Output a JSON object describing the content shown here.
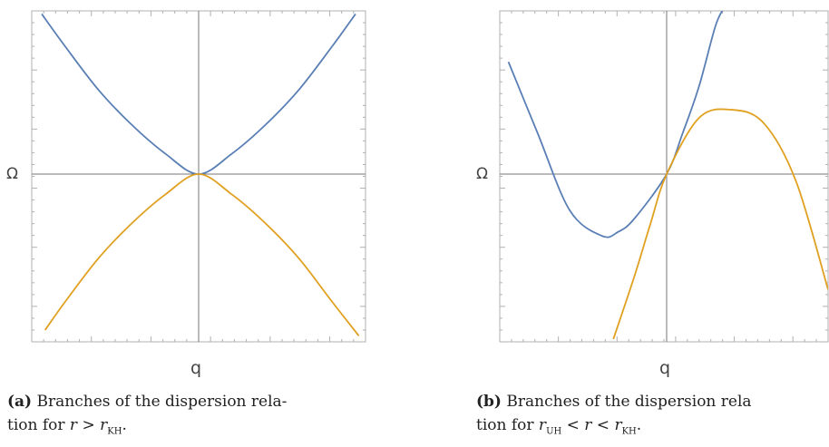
{
  "chart_data": [
    {
      "type": "line",
      "title": "",
      "xlabel": "q",
      "ylabel": "Ω",
      "xlim": [
        -1,
        1
      ],
      "ylim": [
        -1,
        1
      ],
      "grid": false,
      "caption": {
        "tag": "(a)",
        "line1": "Branches of the dispersion rela-",
        "line2_prefix": "tion for ",
        "math": "r > r",
        "sub": "KH",
        "end": "."
      },
      "series": [
        {
          "color": "#5a7fb5",
          "x": [
            -0.94,
            -0.8,
            -0.6,
            -0.4,
            -0.2,
            0,
            0.2,
            0.4,
            0.6,
            0.8,
            0.94
          ],
          "y": [
            0.97,
            0.774,
            0.51,
            0.298,
            0.124,
            0,
            0.124,
            0.298,
            0.51,
            0.774,
            0.97
          ]
        },
        {
          "color": "#e0a020",
          "x": [
            -0.92,
            -0.8,
            -0.6,
            -0.4,
            -0.2,
            0,
            0.2,
            0.4,
            0.6,
            0.8,
            0.96
          ],
          "y": [
            -0.945,
            -0.774,
            -0.51,
            -0.298,
            -0.124,
            0,
            -0.124,
            -0.298,
            -0.51,
            -0.774,
            -0.98
          ]
        }
      ]
    },
    {
      "type": "line",
      "title": "",
      "xlabel": "q",
      "ylabel": "Ω",
      "xlim": [
        -1,
        1
      ],
      "ylim": [
        -1,
        1
      ],
      "grid": false,
      "caption": {
        "tag": "(b)",
        "line1": "Branches of the dispersion rela",
        "line2_prefix": "tion for ",
        "math_pre": "r",
        "sub_pre": "UH",
        "math": " < r < r",
        "sub": "KH",
        "end": "."
      },
      "series": [
        {
          "color": "#5a7fb5",
          "x": [
            -0.98,
            -0.8,
            -0.6,
            -0.4,
            -0.3,
            -0.2,
            0,
            0.1,
            0.2,
            0.3,
            0.35
          ],
          "y": [
            0.68,
            0.25,
            -0.22,
            -0.375,
            -0.35,
            -0.27,
            0,
            0.25,
            0.53,
            0.89,
            1.0
          ]
        },
        {
          "color": "#e0a020",
          "x": [
            -0.33,
            -0.2,
            -0.1,
            0,
            0.2,
            0.4,
            0.6,
            0.8,
            1.0
          ],
          "y": [
            -1.0,
            -0.62,
            -0.3,
            0,
            0.34,
            0.39,
            0.31,
            -0.04,
            -0.7
          ]
        }
      ]
    }
  ]
}
